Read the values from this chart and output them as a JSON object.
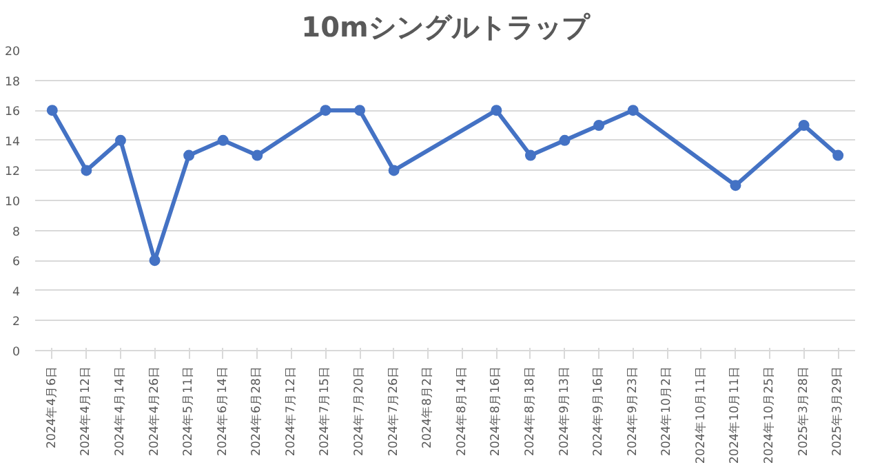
{
  "chart_data": {
    "type": "line",
    "title": "10mシングルトラップ",
    "categories": [
      "2024年4月6日",
      "2024年4月12日",
      "2024年4月14日",
      "2024年4月26日",
      "2024年5月11日",
      "2024年6月14日",
      "2024年6月28日",
      "2024年7月12日",
      "2024年7月15日",
      "2024年7月20日",
      "2024年7月26日",
      "2024年8月2日",
      "2024年8月14日",
      "2024年8月16日",
      "2024年8月18日",
      "2024年9月13日",
      "2024年9月16日",
      "2024年9月23日",
      "2024年10月2日",
      "2024年10月11日",
      "2024年10月11日",
      "2024年10月25日",
      "2025年3月28日",
      "2025年3月29日"
    ],
    "series": [
      {
        "color": "#4472c4",
        "values": [
          16,
          12,
          14,
          6,
          13,
          14,
          13,
          null,
          16,
          16,
          12,
          null,
          null,
          16,
          13,
          14,
          15,
          16,
          null,
          null,
          11,
          null,
          15,
          13
        ]
      }
    ],
    "ylim": [
      0,
      20
    ],
    "yticks": [
      0,
      2,
      4,
      6,
      8,
      10,
      12,
      14,
      16,
      18,
      20
    ],
    "grid": "y",
    "marker": "circle",
    "line_style": "solid"
  }
}
